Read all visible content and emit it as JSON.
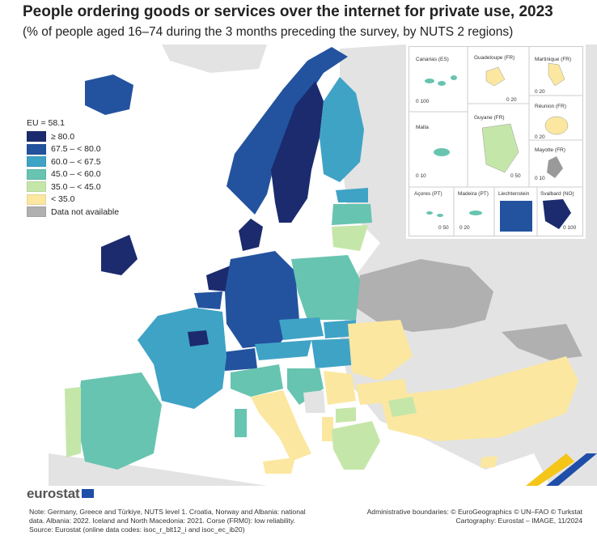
{
  "title": "People ordering goods or services over the internet for private use, 2023",
  "subtitle": "(% of people aged 16–74 during the 3 months preceding the survey, by NUTS 2 regions)",
  "legend": {
    "header": "EU = 58.1",
    "classes": [
      {
        "label": "≥ 80.0",
        "color": "#1b2b6e"
      },
      {
        "label": "67.5 – < 80.0",
        "color": "#23539f"
      },
      {
        "label": "60.0 – < 67.5",
        "color": "#3fa3c6"
      },
      {
        "label": "45.0 – < 60.0",
        "color": "#67c4b0"
      },
      {
        "label": "35.0 – < 45.0",
        "color": "#c5e6a9"
      },
      {
        "label": "< 35.0",
        "color": "#fbe7a0"
      },
      {
        "label": "Data not available",
        "color": "#b0b0b0"
      }
    ]
  },
  "insets": {
    "canarias": {
      "name": "Canarias (ES)",
      "scale": "0   100"
    },
    "guadeloupe": {
      "name": "Guadeloupe (FR)",
      "scale": "0   20"
    },
    "martinique": {
      "name": "Martinique (FR)",
      "scale": "0   20"
    },
    "reunion": {
      "name": "Réunion (FR)",
      "scale": "0   20"
    },
    "malta": {
      "name": "Malta",
      "scale": "0   10"
    },
    "guyane": {
      "name": "Guyane (FR)",
      "scale": "0   50"
    },
    "mayotte": {
      "name": "Mayotte (FR)",
      "scale": "0   10"
    },
    "acores": {
      "name": "Açores (PT)",
      "scale": "0   50"
    },
    "madeira": {
      "name": "Madeira (PT)",
      "scale": "0   20"
    },
    "liechtenstein": {
      "name": "Liechtenstein",
      "scale": ""
    },
    "svalbard": {
      "name": "Svalbard (NO)",
      "scale": "0 100"
    }
  },
  "logo": {
    "text": "eurostat"
  },
  "note": {
    "line1": "Note: Germany, Greece and Türkiye, NUTS level 1. Croatia, Norway and Albania: national data. Albania: 2022. Iceland and North Macedonia: 2021. Corse (FRM0): low reliability.",
    "line2": "Source: Eurostat (online data codes: isoc_r_blt12_i and isoc_ec_ib20)"
  },
  "credits": {
    "line1": "Administrative boundaries: © EuroGeographics © UN–FAO © Turkstat",
    "line2": "Cartography: Eurostat – IMAGE, 11/2024"
  }
}
